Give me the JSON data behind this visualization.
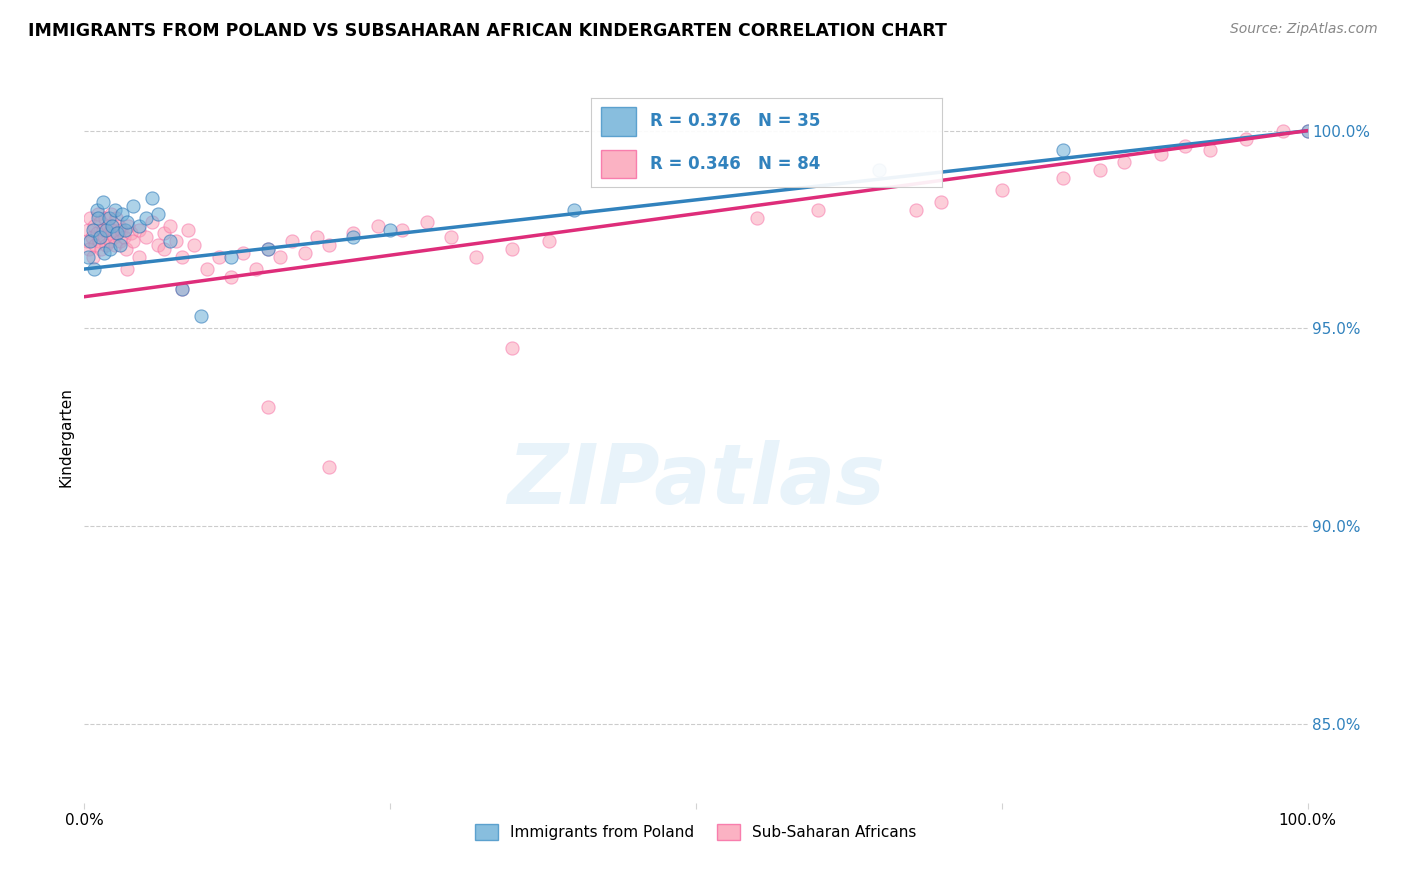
{
  "title": "IMMIGRANTS FROM POLAND VS SUBSAHARAN AFRICAN KINDERGARTEN CORRELATION CHART",
  "source": "Source: ZipAtlas.com",
  "ylabel": "Kindergarten",
  "xlim": [
    0,
    100
  ],
  "ylim": [
    83,
    101.5
  ],
  "yticks": [
    85,
    90,
    95,
    100
  ],
  "ytick_labels": [
    "85.0%",
    "90.0%",
    "95.0%",
    "100.0%"
  ],
  "legend_r1": "R = 0.376",
  "legend_n1": "N = 35",
  "legend_r2": "R = 0.346",
  "legend_n2": "N = 84",
  "color_blue": "#6baed6",
  "color_pink": "#fa9fb5",
  "color_blue_line": "#3182bd",
  "color_pink_line": "#de2d7a",
  "color_right_axis": "#3182bd",
  "blue_points_x": [
    0.3,
    0.5,
    0.7,
    0.8,
    1.0,
    1.1,
    1.3,
    1.5,
    1.6,
    1.8,
    2.0,
    2.1,
    2.3,
    2.5,
    2.7,
    2.9,
    3.1,
    3.3,
    3.5,
    4.0,
    4.5,
    5.0,
    5.5,
    6.0,
    7.0,
    8.0,
    9.5,
    12.0,
    15.0,
    22.0,
    25.0,
    40.0,
    65.0,
    80.0,
    100.0
  ],
  "blue_points_y": [
    96.8,
    97.2,
    97.5,
    96.5,
    98.0,
    97.8,
    97.3,
    98.2,
    96.9,
    97.5,
    97.8,
    97.0,
    97.6,
    98.0,
    97.4,
    97.1,
    97.9,
    97.5,
    97.7,
    98.1,
    97.6,
    97.8,
    98.3,
    97.9,
    97.2,
    96.0,
    95.3,
    96.8,
    97.0,
    97.3,
    97.5,
    98.0,
    99.0,
    99.5,
    100.0
  ],
  "pink_points_x": [
    0.2,
    0.3,
    0.4,
    0.5,
    0.6,
    0.7,
    0.8,
    0.9,
    1.0,
    1.1,
    1.2,
    1.3,
    1.4,
    1.5,
    1.6,
    1.7,
    1.8,
    1.9,
    2.0,
    2.1,
    2.2,
    2.3,
    2.4,
    2.5,
    2.6,
    2.7,
    2.8,
    2.9,
    3.0,
    3.2,
    3.4,
    3.6,
    3.8,
    4.0,
    4.5,
    5.0,
    5.5,
    6.0,
    6.5,
    7.0,
    7.5,
    8.0,
    8.5,
    9.0,
    10.0,
    11.0,
    12.0,
    13.0,
    14.0,
    15.0,
    16.0,
    17.0,
    18.0,
    19.0,
    20.0,
    22.0,
    24.0,
    26.0,
    28.0,
    30.0,
    32.0,
    35.0,
    38.0,
    55.0,
    68.0,
    70.0,
    75.0,
    80.0,
    83.0,
    85.0,
    88.0,
    90.0,
    92.0,
    95.0,
    98.0,
    100.0,
    20.0,
    15.0,
    35.0,
    60.0,
    8.0,
    3.5,
    4.5,
    6.5
  ],
  "pink_points_y": [
    97.2,
    97.5,
    97.0,
    97.8,
    97.3,
    96.8,
    97.6,
    97.1,
    97.4,
    97.9,
    97.2,
    97.7,
    97.0,
    97.5,
    97.3,
    97.8,
    97.1,
    97.6,
    97.4,
    97.2,
    97.9,
    97.5,
    97.3,
    97.1,
    97.8,
    97.4,
    97.6,
    97.2,
    97.5,
    97.3,
    97.0,
    97.6,
    97.4,
    97.2,
    97.5,
    97.3,
    97.7,
    97.1,
    97.4,
    97.6,
    97.2,
    96.8,
    97.5,
    97.1,
    96.5,
    96.8,
    96.3,
    96.9,
    96.5,
    97.0,
    96.8,
    97.2,
    96.9,
    97.3,
    97.1,
    97.4,
    97.6,
    97.5,
    97.7,
    97.3,
    96.8,
    97.0,
    97.2,
    97.8,
    98.0,
    98.2,
    98.5,
    98.8,
    99.0,
    99.2,
    99.4,
    99.6,
    99.5,
    99.8,
    100.0,
    100.0,
    91.5,
    93.0,
    94.5,
    98.0,
    96.0,
    96.5,
    96.8,
    97.0
  ]
}
